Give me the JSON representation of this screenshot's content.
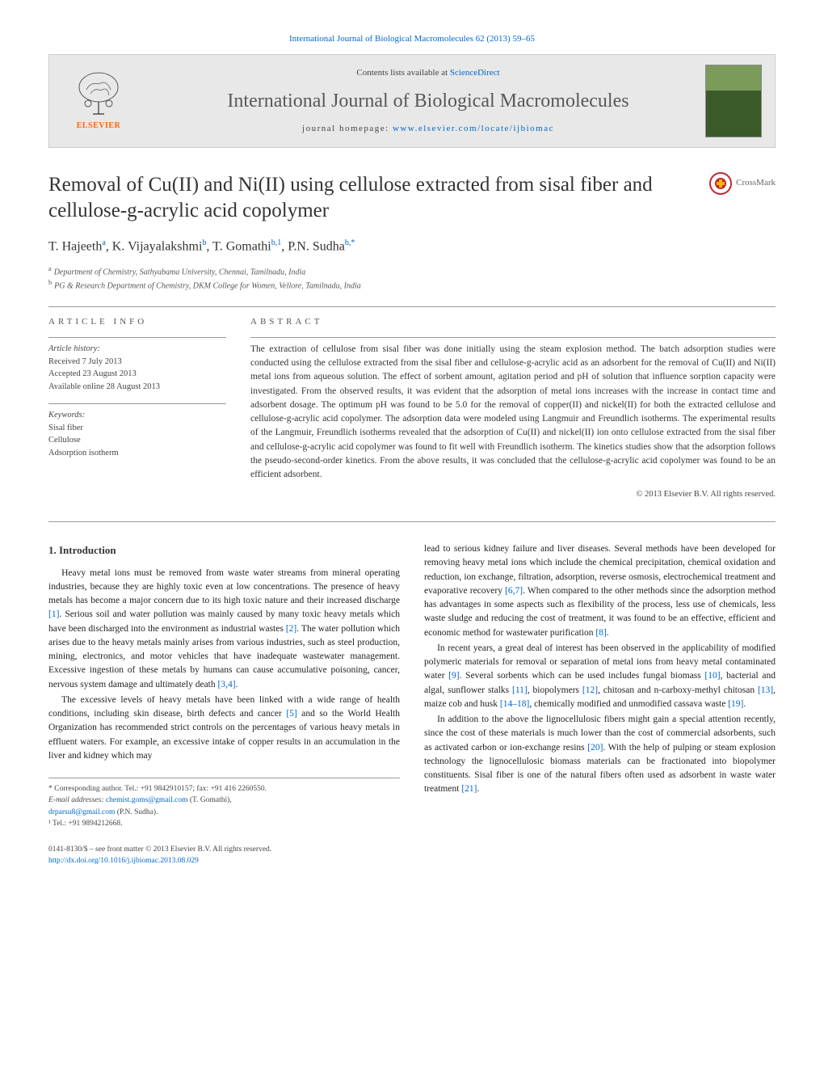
{
  "header_link": "International Journal of Biological Macromolecules 62 (2013) 59–65",
  "banner": {
    "contents_prefix": "Contents lists available at ",
    "contents_link": "ScienceDirect",
    "journal_name": "International Journal of Biological Macromolecules",
    "homepage_prefix": "journal homepage: ",
    "homepage_link": "www.elsevier.com/locate/ijbiomac",
    "publisher": "ELSEVIER"
  },
  "crossmark_label": "CrossMark",
  "title": "Removal of Cu(II) and Ni(II) using cellulose extracted from sisal fiber and cellulose-g-acrylic acid copolymer",
  "authors_html": "T. Hajeeth<sup>a</sup>, K. Vijayalakshmi<sup>b</sup>, T. Gomathi<sup>b,1</sup>, P.N. Sudha<sup>b,*</sup>",
  "affiliations": [
    {
      "marker": "a",
      "text": "Department of Chemistry, Sathyabama University, Chennai, Tamilnadu, India"
    },
    {
      "marker": "b",
      "text": "PG & Research Department of Chemistry, DKM College for Women, Vellore, Tamilnadu, India"
    }
  ],
  "article_info": {
    "heading": "article info",
    "history_label": "Article history:",
    "received": "Received 7 July 2013",
    "accepted": "Accepted 23 August 2013",
    "online": "Available online 28 August 2013",
    "keywords_label": "Keywords:",
    "keywords": [
      "Sisal fiber",
      "Cellulose",
      "Adsorption isotherm"
    ]
  },
  "abstract": {
    "heading": "abstract",
    "text": "The extraction of cellulose from sisal fiber was done initially using the steam explosion method. The batch adsorption studies were conducted using the cellulose extracted from the sisal fiber and cellulose-g-acrylic acid as an adsorbent for the removal of Cu(II) and Ni(II) metal ions from aqueous solution. The effect of sorbent amount, agitation period and pH of solution that influence sorption capacity were investigated. From the observed results, it was evident that the adsorption of metal ions increases with the increase in contact time and adsorbent dosage. The optimum pH was found to be 5.0 for the removal of copper(II) and nickel(II) for both the extracted cellulose and cellulose-g-acrylic acid copolymer. The adsorption data were modeled using Langmuir and Freundlich isotherms. The experimental results of the Langmuir, Freundlich isotherms revealed that the adsorption of Cu(II) and nickel(II) ion onto cellulose extracted from the sisal fiber and cellulose-g-acrylic acid copolymer was found to fit well with Freundlich isotherm. The kinetics studies show that the adsorption follows the pseudo-second-order kinetics. From the above results, it was concluded that the cellulose-g-acrylic acid copolymer was found to be an efficient adsorbent.",
    "copyright": "© 2013 Elsevier B.V. All rights reserved."
  },
  "section1": {
    "heading": "1. Introduction",
    "p1": "Heavy metal ions must be removed from waste water streams from mineral operating industries, because they are highly toxic even at low concentrations. The presence of heavy metals has become a major concern due to its high toxic nature and their increased discharge [1]. Serious soil and water pollution was mainly caused by many toxic heavy metals which have been discharged into the environment as industrial wastes [2]. The water pollution which arises due to the heavy metals mainly arises from various industries, such as steel production, mining, electronics, and motor vehicles that have inadequate wastewater management. Excessive ingestion of these metals by humans can cause accumulative poisoning, cancer, nervous system damage and ultimately death [3,4].",
    "p2": "The excessive levels of heavy metals have been linked with a wide range of health conditions, including skin disease, birth defects and cancer [5] and so the World Health Organization has recommended strict controls on the percentages of various heavy metals in effluent waters. For example, an excessive intake of copper results in an accumulation in the liver and kidney which may",
    "p3": "lead to serious kidney failure and liver diseases. Several methods have been developed for removing heavy metal ions which include the chemical precipitation, chemical oxidation and reduction, ion exchange, filtration, adsorption, reverse osmosis, electrochemical treatment and evaporative recovery [6,7]. When compared to the other methods since the adsorption method has advantages in some aspects such as flexibility of the process, less use of chemicals, less waste sludge and reducing the cost of treatment, it was found to be an effective, efficient and economic method for wastewater purification [8].",
    "p4": "In recent years, a great deal of interest has been observed in the applicability of modified polymeric materials for removal or separation of metal ions from heavy metal contaminated water [9]. Several sorbents which can be used includes fungal biomass [10], bacterial and algal, sunflower stalks [11], biopolymers [12], chitosan and n-carboxy-methyl chitosan [13], maize cob and husk [14–18], chemically modified and unmodified cassava waste [19].",
    "p5": "In addition to the above the lignocellulosic fibers might gain a special attention recently, since the cost of these materials is much lower than the cost of commercial adsorbents, such as activated carbon or ion-exchange resins [20]. With the help of pulping or steam explosion technology the lignocellulosic biomass materials can be fractionated into biopolymer constituents. Sisal fiber is one of the natural fibers often used as adsorbent in waste water treatment [21]."
  },
  "footnotes": {
    "corr": "* Corresponding author. Tel.: +91 9842910157; fax: +91 416 2260550.",
    "email_label": "E-mail addresses:",
    "email1": "chemist.goms@gmail.com",
    "email1_name": "(T. Gomathi),",
    "email2": "drparsu8@gmail.com",
    "email2_name": "(P.N. Sudha).",
    "fn1": "¹ Tel.: +91 9894212668."
  },
  "footer": {
    "line1": "0141-8130/$ – see front matter © 2013 Elsevier B.V. All rights reserved.",
    "doi": "http://dx.doi.org/10.1016/j.ijbiomac.2013.08.029"
  },
  "colors": {
    "link": "#0066cc",
    "elsevier_orange": "#ff6600",
    "crossmark_red": "#c1272d",
    "crossmark_yellow": "#f7b500",
    "banner_bg": "#e8e8e8",
    "text": "#333333",
    "cover_top": "#7a9b5a",
    "cover_bottom": "#3a5a2a"
  }
}
